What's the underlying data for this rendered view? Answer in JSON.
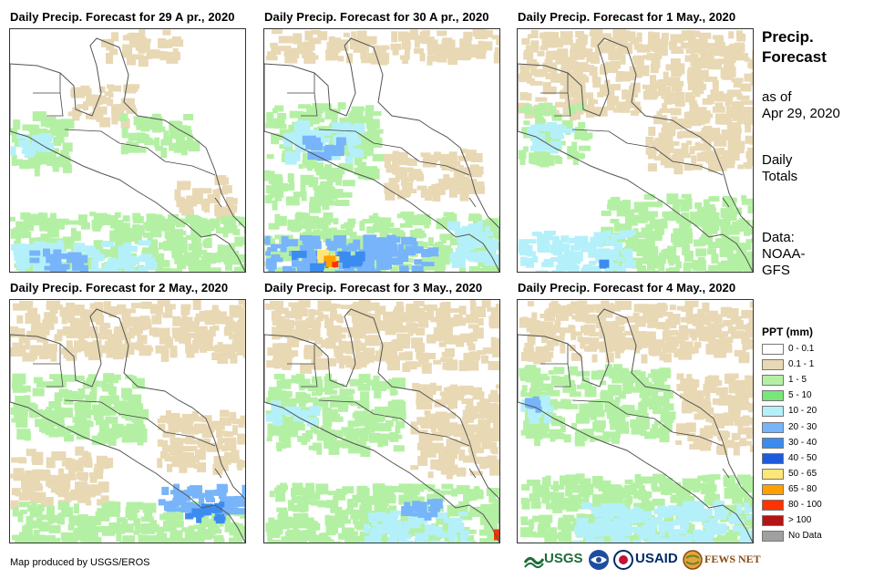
{
  "panels": [
    {
      "title": "Daily Precip. Forecast for 29 A pr., 2020",
      "day": "29 Apr 2020"
    },
    {
      "title": "Daily Precip. Forecast for 30 A pr., 2020",
      "day": "30 Apr 2020"
    },
    {
      "title": "Daily Precip. Forecast for 1 May., 2020",
      "day": "1 May 2020"
    },
    {
      "title": "Daily Precip. Forecast for 2 May., 2020",
      "day": "2 May 2020"
    },
    {
      "title": "Daily Precip. Forecast for 3 May., 2020",
      "day": "3 May 2020"
    },
    {
      "title": "Daily Precip. Forecast for 4 May., 2020",
      "day": "4 May 2020"
    }
  ],
  "side": {
    "title": "Precip. Forecast",
    "as_of_label": "as of",
    "as_of_date": "Apr 29, 2020",
    "totals_line1": "Daily",
    "totals_line2": "Totals",
    "source_line1": "Data:",
    "source_line2": "NOAA-",
    "source_line3": "GFS"
  },
  "legend": {
    "title": "PPT (mm)",
    "items": [
      {
        "label": "0 - 0.1",
        "color": "#ffffff"
      },
      {
        "label": "0.1 - 1",
        "color": "#e8d8b4"
      },
      {
        "label": "1 - 5",
        "color": "#b4f0a4"
      },
      {
        "label": "5 - 10",
        "color": "#78e678"
      },
      {
        "label": "10 - 20",
        "color": "#b4f0fa"
      },
      {
        "label": "20 - 30",
        "color": "#78b4fa"
      },
      {
        "label": "30 - 40",
        "color": "#3c8cf0"
      },
      {
        "label": "40 - 50",
        "color": "#1e5adc"
      },
      {
        "label": "50 - 65",
        "color": "#ffe678"
      },
      {
        "label": "65 - 80",
        "color": "#ffa000"
      },
      {
        "label": "80 - 100",
        "color": "#ff3200"
      },
      {
        "label": "> 100",
        "color": "#b41414"
      },
      {
        "label": "No Data",
        "color": "#a0a0a0"
      }
    ]
  },
  "footer": {
    "credit": "Map produced by USGS/EROS",
    "logos": {
      "usgs": "USGS",
      "usaid": "USAID",
      "fewsnet": "FEWS NET"
    }
  }
}
